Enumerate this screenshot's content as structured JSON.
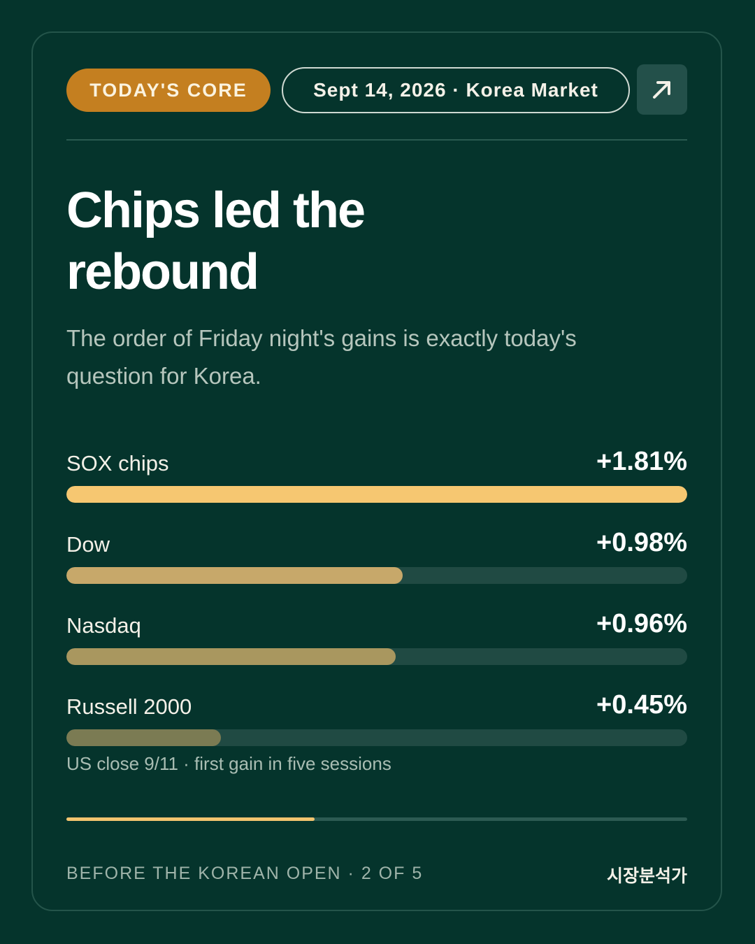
{
  "header": {
    "badge_label": "TODAY'S CORE",
    "date_label": "Sept 14, 2026 · Korea Market",
    "share_icon": "arrow-up-right-icon"
  },
  "headline": {
    "line1": "Chips led the",
    "line2": "rebound"
  },
  "subtitle": "The order of Friday night's gains is exactly today's question for Korea.",
  "metrics": [
    {
      "label": "SOX chips",
      "value_text": "+1.81%",
      "value": 1.81,
      "color": "#f6c771"
    },
    {
      "label": "Dow",
      "value_text": "+0.98%",
      "value": 0.98,
      "color": "#c7a86a"
    },
    {
      "label": "Nasdaq",
      "value_text": "+0.96%",
      "value": 0.96,
      "color": "#a9975f"
    },
    {
      "label": "Russell 2000",
      "value_text": "+0.45%",
      "value": 0.45,
      "color": "#7b7b53"
    }
  ],
  "chart_data": {
    "type": "bar",
    "categories": [
      "SOX chips",
      "Dow",
      "Nasdaq",
      "Russell 2000"
    ],
    "values": [
      1.81,
      0.98,
      0.96,
      0.45
    ],
    "xlim": [
      0,
      1.81
    ]
  },
  "footnote": "US close 9/11 · first gain in five sessions",
  "progress": {
    "current": 2,
    "total": 5,
    "fraction": 0.4
  },
  "footer": {
    "left_label": "BEFORE THE KOREAN OPEN · 2 OF 5",
    "right_label": "시장분석가"
  },
  "colors": {
    "background": "#05342c",
    "accent": "#c47f20",
    "highlight": "#f3c46f"
  }
}
